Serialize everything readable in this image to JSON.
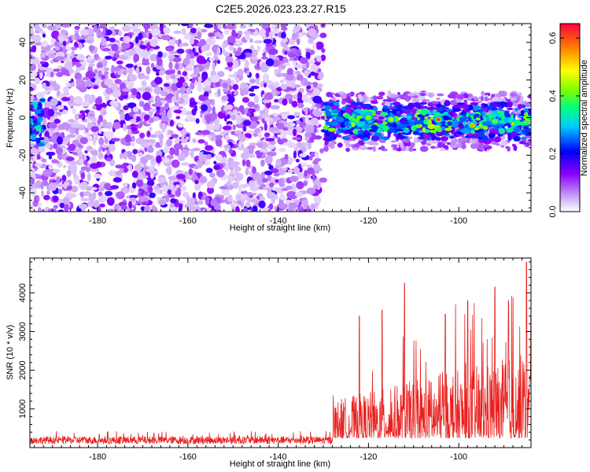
{
  "title": "C2E5.2026.023.23.27.R15",
  "chart_data": [
    {
      "type": "heatmap",
      "title": "C2E5.2026.023.23.27.R15",
      "xlabel": "Height of straight line (km)",
      "ylabel": "Frequency (Hz)",
      "xlim": [
        -195,
        -84
      ],
      "ylim": [
        -50,
        50
      ],
      "xticks": [
        -180,
        -160,
        -140,
        -120,
        -100
      ],
      "yticks": [
        -40,
        -20,
        0,
        20,
        40
      ],
      "xtick_labels": [
        "-180",
        "-160",
        "-140",
        "-120",
        "-100"
      ],
      "ytick_labels": [
        "-40",
        "-20",
        "0",
        "20",
        "40"
      ],
      "colorbar": {
        "label": "Normalized spectral amplitude",
        "range": [
          0,
          0.65
        ],
        "ticks": [
          0,
          0.2,
          0.4,
          0.6
        ],
        "tick_labels": [
          "0.0",
          "0.2",
          "0.4",
          "0.6"
        ],
        "colors": [
          "#ffffff",
          "#c9a2f7",
          "#8a00ff",
          "#0000ff",
          "#00c8ff",
          "#00ff80",
          "#80ff00",
          "#ffff00",
          "#ff8000",
          "#ff0040"
        ]
      },
      "regions": [
        {
          "x_range": [
            -195,
            -130
          ],
          "f_range": [
            -50,
            50
          ],
          "description_level": "noise",
          "typical_amplitude": 0.08
        },
        {
          "x_range": [
            -130,
            -84
          ],
          "f_center": 0,
          "f_halfwidth": 8,
          "description_level": "signal",
          "typical_amplitude": 0.3,
          "peak_amplitude": 0.62
        },
        {
          "x_range": [
            -195,
            -192
          ],
          "f_range": [
            -15,
            10
          ],
          "description_level": "edge",
          "typical_amplitude": 0.22
        }
      ],
      "peaks": [
        {
          "x": -120,
          "f": 0,
          "value": 0.42
        },
        {
          "x": -115,
          "f": -1,
          "value": 0.45
        },
        {
          "x": -104.5,
          "f": -1,
          "value": 0.62
        },
        {
          "x": -97,
          "f": -4,
          "value": 0.55
        },
        {
          "x": -92,
          "f": -2,
          "value": 0.4
        }
      ]
    },
    {
      "type": "line",
      "xlabel": "Height of straight line (km)",
      "ylabel": "SNR (10 * v/v)",
      "xlim": [
        -195,
        -84
      ],
      "ylim": [
        0,
        4900
      ],
      "xticks": [
        -180,
        -160,
        -140,
        -120,
        -100
      ],
      "yticks": [
        1000,
        2000,
        3000,
        4000
      ],
      "xtick_labels": [
        "-180",
        "-160",
        "-140",
        "-120",
        "-100"
      ],
      "ytick_labels": [
        "1000",
        "2000",
        "3000",
        "4000"
      ],
      "color": "#e8201e",
      "series": [
        {
          "name": "SNR",
          "segments": [
            {
              "x_range": [
                -195,
                -128
              ],
              "baseline": 150,
              "spread": 200
            },
            {
              "x_range": [
                -128,
                -84
              ],
              "baseline": 700,
              "spread": 1400
            }
          ],
          "peaks": [
            {
              "x": -122,
              "y": 3400
            },
            {
              "x": -117,
              "y": 3550
            },
            {
              "x": -112,
              "y": 4250
            },
            {
              "x": -103,
              "y": 3450
            },
            {
              "x": -98,
              "y": 3800
            },
            {
              "x": -92,
              "y": 4150
            },
            {
              "x": -89,
              "y": 3800
            },
            {
              "x": -85,
              "y": 4800
            },
            {
              "x": -84,
              "y": 3400
            }
          ]
        }
      ]
    }
  ]
}
